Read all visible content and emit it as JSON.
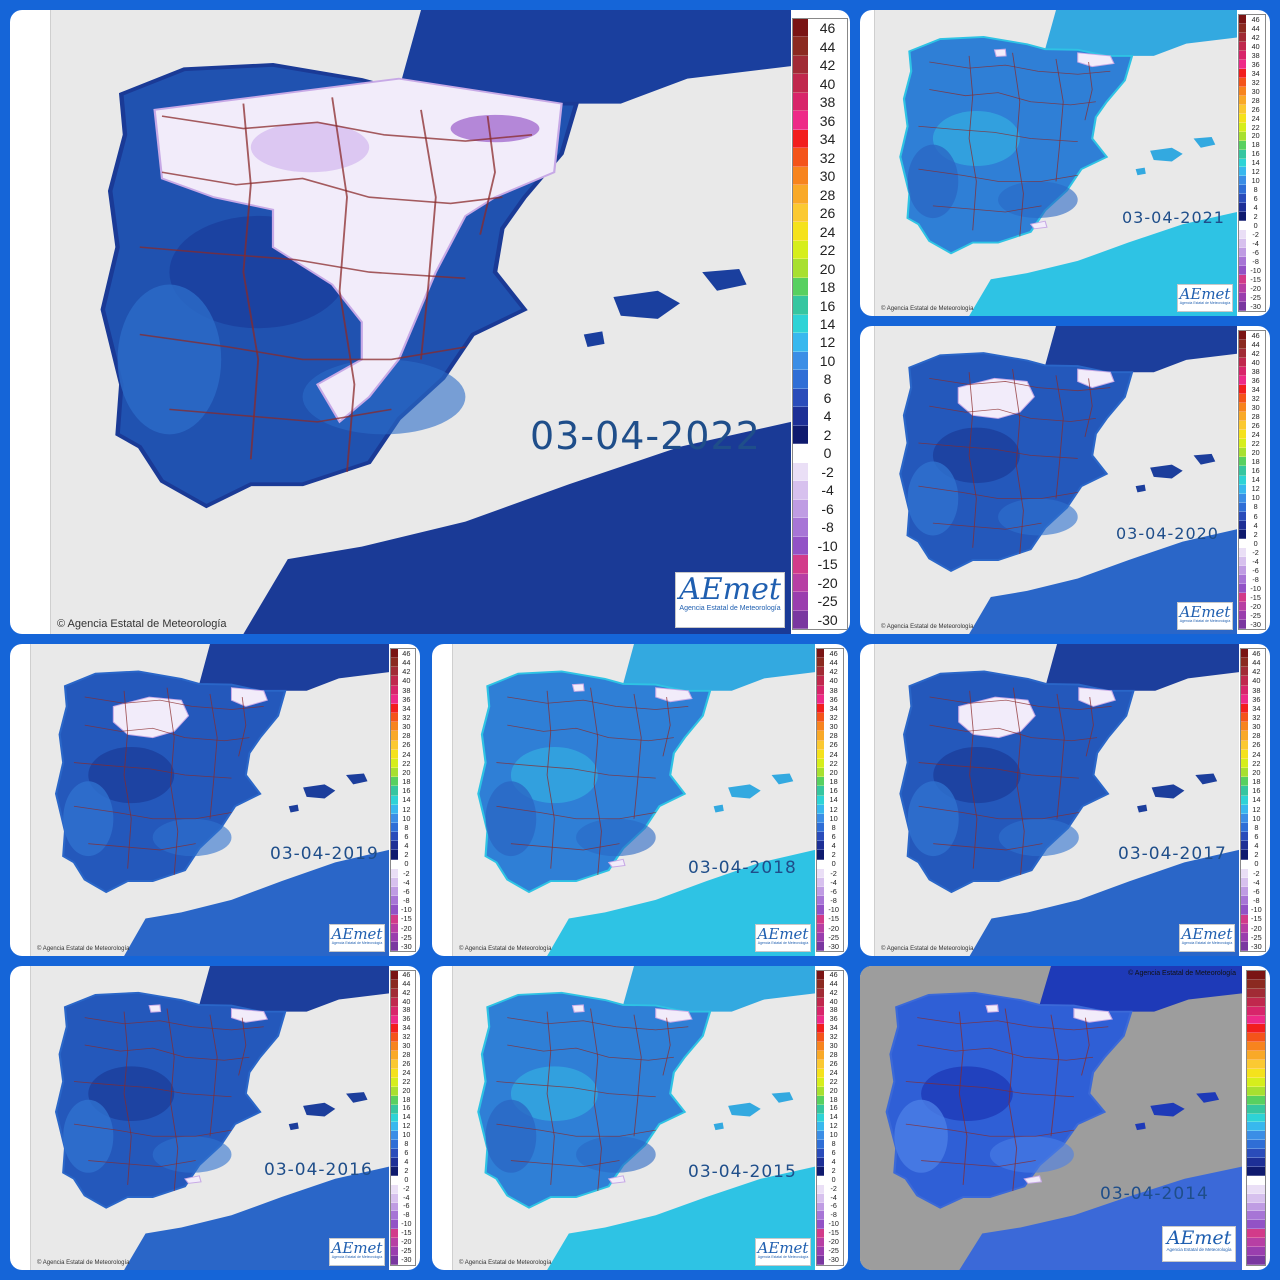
{
  "copyright": "© Agencia Estatal de Meteorología",
  "logo": {
    "word": "AEmet",
    "subtitle": "Agencia Estatal de Meteorología"
  },
  "legend": {
    "labels": [
      "46",
      "44",
      "42",
      "40",
      "38",
      "36",
      "34",
      "32",
      "30",
      "28",
      "26",
      "24",
      "22",
      "20",
      "18",
      "16",
      "14",
      "12",
      "10",
      "8",
      "6",
      "4",
      "2",
      "0",
      "-2",
      "-4",
      "-6",
      "-8",
      "-10",
      "-15",
      "-20",
      "-25",
      "-30"
    ],
    "colors": [
      "#7a1414",
      "#8b2a20",
      "#a12b35",
      "#c0284d",
      "#d8256a",
      "#ee2a88",
      "#f21e1e",
      "#f4541a",
      "#f7841e",
      "#f9a928",
      "#fbc932",
      "#f5e21c",
      "#d6ee1c",
      "#a8e030",
      "#58d060",
      "#36c6a0",
      "#2ed3d6",
      "#38b8ee",
      "#3b8ee6",
      "#2f6ed6",
      "#2a4cba",
      "#1d2f96",
      "#0f1a6e",
      "#ffffff",
      "#eadff6",
      "#d7c1ee",
      "#bf9ce3",
      "#a775d6",
      "#9252c6",
      "#d23b8a",
      "#b73fa4",
      "#9a3eae",
      "#7a37a0"
    ]
  },
  "panels": [
    {
      "id": "2022",
      "date": "03-04-2022",
      "snow": "heavy"
    },
    {
      "id": "2021",
      "date": "03-04-2021",
      "snow": "light"
    },
    {
      "id": "2020",
      "date": "03-04-2020",
      "snow": "medium"
    },
    {
      "id": "2019",
      "date": "03-04-2019",
      "snow": "medium"
    },
    {
      "id": "2018",
      "date": "03-04-2018",
      "snow": "light"
    },
    {
      "id": "2017",
      "date": "03-04-2017",
      "snow": "medium"
    },
    {
      "id": "2016",
      "date": "03-04-2016",
      "snow": "light"
    },
    {
      "id": "2015",
      "date": "03-04-2015",
      "snow": "light"
    },
    {
      "id": "2014",
      "date": "03-04-2014",
      "snow": "light"
    }
  ]
}
